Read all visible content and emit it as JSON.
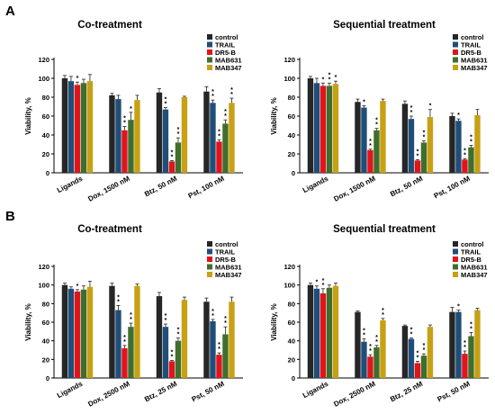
{
  "panel_labels": [
    "A",
    "B"
  ],
  "colors": {
    "control": "#262626",
    "TRAIL": "#1f4e79",
    "DR5-B": "#e0151b",
    "MAB631": "#3f6e2d",
    "MAB347": "#c8a014",
    "error": "#222222",
    "axis": "#000000"
  },
  "chart_data": [
    {
      "type": "bar",
      "panel": "A",
      "title": "Co-treatment",
      "ylabel": "Viability, %",
      "ylim": [
        0,
        120
      ],
      "yticks": [
        0,
        20,
        40,
        60,
        80,
        100,
        120
      ],
      "categories": [
        "Ligands",
        "Dox, 1500 nM",
        "Btz, 50 nM",
        "Pst, 100 nM"
      ],
      "legend": [
        "control",
        "TRAIL",
        "DR5-B",
        "MAB631",
        "MAB347"
      ],
      "legend_position": "top-right",
      "series": [
        {
          "name": "control",
          "values": [
            100,
            82,
            85,
            86
          ],
          "errors": [
            3,
            2,
            4,
            5
          ]
        },
        {
          "name": "TRAIL",
          "values": [
            97,
            78,
            67,
            74
          ],
          "errors": [
            5,
            4,
            2,
            3
          ]
        },
        {
          "name": "DR5-B",
          "values": [
            93,
            45,
            12,
            33
          ],
          "errors": [
            3,
            4,
            1,
            2
          ]
        },
        {
          "name": "MAB631",
          "values": [
            95,
            56,
            32,
            52
          ],
          "errors": [
            4,
            8,
            5,
            4
          ]
        },
        {
          "name": "MAB347",
          "values": [
            97,
            77,
            80,
            74
          ],
          "errors": [
            7,
            5,
            1,
            5
          ]
        }
      ],
      "significance": [
        {
          "category": 0,
          "series": 2,
          "text": "*"
        },
        {
          "category": 1,
          "series": 2,
          "text": "**"
        },
        {
          "category": 1,
          "series": 3,
          "text": "*"
        },
        {
          "category": 2,
          "series": 1,
          "text": "**"
        },
        {
          "category": 2,
          "series": 2,
          "text": "**"
        },
        {
          "category": 2,
          "series": 3,
          "text": "**"
        },
        {
          "category": 3,
          "series": 1,
          "text": "**"
        },
        {
          "category": 3,
          "series": 2,
          "text": "**"
        },
        {
          "category": 3,
          "series": 3,
          "text": "**"
        },
        {
          "category": 3,
          "series": 4,
          "text": "**"
        }
      ]
    },
    {
      "type": "bar",
      "panel": "A",
      "title": "Sequential treatment",
      "ylabel": "Viability, %",
      "ylim": [
        0,
        120
      ],
      "yticks": [
        0,
        20,
        40,
        60,
        80,
        100,
        120
      ],
      "categories": [
        "Ligands",
        "Dox, 1500 nM",
        "Btz, 50 nM",
        "Pst, 100 nM"
      ],
      "legend": [
        "control",
        "TRAIL",
        "DR5-B",
        "MAB631",
        "MAB347"
      ],
      "legend_position": "top-right",
      "series": [
        {
          "name": "control",
          "values": [
            100,
            75,
            73,
            60
          ],
          "errors": [
            2,
            3,
            3,
            3
          ]
        },
        {
          "name": "TRAIL",
          "values": [
            95,
            69,
            57,
            55
          ],
          "errors": [
            5,
            2,
            3,
            2
          ]
        },
        {
          "name": "DR5-B",
          "values": [
            92,
            24,
            13,
            14
          ],
          "errors": [
            3,
            1,
            1,
            1
          ]
        },
        {
          "name": "MAB631",
          "values": [
            92,
            45,
            32,
            27
          ],
          "errors": [
            3,
            2,
            2,
            2
          ]
        },
        {
          "name": "MAB347",
          "values": [
            94,
            76,
            59,
            61
          ],
          "errors": [
            3,
            2,
            8,
            6
          ]
        }
      ],
      "significance": [
        {
          "category": 0,
          "series": 2,
          "text": "*"
        },
        {
          "category": 0,
          "series": 3,
          "text": "**"
        },
        {
          "category": 0,
          "series": 4,
          "text": "*"
        },
        {
          "category": 1,
          "series": 1,
          "text": "*"
        },
        {
          "category": 1,
          "series": 2,
          "text": "**"
        },
        {
          "category": 1,
          "series": 3,
          "text": "**"
        },
        {
          "category": 2,
          "series": 1,
          "text": "**"
        },
        {
          "category": 2,
          "series": 2,
          "text": "**"
        },
        {
          "category": 2,
          "series": 3,
          "text": "**"
        },
        {
          "category": 2,
          "series": 4,
          "text": "*"
        },
        {
          "category": 3,
          "series": 1,
          "text": "*"
        },
        {
          "category": 3,
          "series": 2,
          "text": "**"
        },
        {
          "category": 3,
          "series": 3,
          "text": "**"
        }
      ]
    },
    {
      "type": "bar",
      "panel": "B",
      "title": "Co-treatment",
      "ylabel": "Viability, %",
      "ylim": [
        0,
        120
      ],
      "yticks": [
        0,
        20,
        40,
        60,
        80,
        100,
        120
      ],
      "categories": [
        "Ligands",
        "Dox, 2500 nM",
        "Btz, 25 nM",
        "Pst, 50 nM"
      ],
      "legend": [
        "control",
        "TRAIL",
        "DR5-B",
        "MAB631",
        "MAB347"
      ],
      "legend_position": "top-right",
      "series": [
        {
          "name": "control",
          "values": [
            100,
            99,
            88,
            82
          ],
          "errors": [
            2,
            3,
            4,
            4
          ]
        },
        {
          "name": "TRAIL",
          "values": [
            96,
            73,
            55,
            61
          ],
          "errors": [
            2,
            5,
            3,
            2
          ]
        },
        {
          "name": "DR5-B",
          "values": [
            93,
            32,
            18,
            25
          ],
          "errors": [
            2,
            3,
            1,
            2
          ]
        },
        {
          "name": "MAB631",
          "values": [
            95,
            55,
            40,
            47
          ],
          "errors": [
            4,
            4,
            3,
            8
          ]
        },
        {
          "name": "MAB347",
          "values": [
            98,
            99,
            84,
            82
          ],
          "errors": [
            6,
            2,
            3,
            5
          ]
        }
      ],
      "significance": [
        {
          "category": 0,
          "series": 2,
          "text": "*"
        },
        {
          "category": 1,
          "series": 1,
          "text": "**"
        },
        {
          "category": 1,
          "series": 2,
          "text": "**"
        },
        {
          "category": 1,
          "series": 3,
          "text": "**"
        },
        {
          "category": 2,
          "series": 1,
          "text": "**"
        },
        {
          "category": 2,
          "series": 2,
          "text": "**"
        },
        {
          "category": 2,
          "series": 3,
          "text": "**"
        },
        {
          "category": 3,
          "series": 1,
          "text": "**"
        },
        {
          "category": 3,
          "series": 2,
          "text": "**"
        },
        {
          "category": 3,
          "series": 3,
          "text": "**"
        }
      ]
    },
    {
      "type": "bar",
      "panel": "B",
      "title": "Sequential treatment",
      "ylabel": "Viability, %",
      "ylim": [
        0,
        120
      ],
      "yticks": [
        0,
        20,
        40,
        60,
        80,
        100,
        120
      ],
      "categories": [
        "Ligands",
        "Dox, 2500 nM",
        "Btz, 25 nM",
        "Pst, 50 nM"
      ],
      "legend": [
        "control",
        "TRAIL",
        "DR5-B",
        "MAB631",
        "MAB347"
      ],
      "legend_position": "top-right",
      "series": [
        {
          "name": "control",
          "values": [
            100,
            71,
            56,
            71
          ],
          "errors": [
            2,
            1,
            1,
            5
          ]
        },
        {
          "name": "TRAIL",
          "values": [
            96,
            39,
            42,
            71
          ],
          "errors": [
            3,
            3,
            1,
            2
          ]
        },
        {
          "name": "DR5-B",
          "values": [
            91,
            23,
            16,
            26
          ],
          "errors": [
            5,
            2,
            2,
            3
          ]
        },
        {
          "name": "MAB631",
          "values": [
            97,
            33,
            24,
            45
          ],
          "errors": [
            3,
            2,
            2,
            4
          ]
        },
        {
          "name": "MAB347",
          "values": [
            99,
            62,
            55,
            73
          ],
          "errors": [
            3,
            2,
            2,
            2
          ]
        }
      ],
      "significance": [
        {
          "category": 0,
          "series": 1,
          "text": "*"
        },
        {
          "category": 0,
          "series": 2,
          "text": "**"
        },
        {
          "category": 1,
          "series": 1,
          "text": "**"
        },
        {
          "category": 1,
          "series": 2,
          "text": "**"
        },
        {
          "category": 1,
          "series": 3,
          "text": "**"
        },
        {
          "category": 1,
          "series": 4,
          "text": "**"
        },
        {
          "category": 2,
          "series": 1,
          "text": "**"
        },
        {
          "category": 2,
          "series": 2,
          "text": "**"
        },
        {
          "category": 2,
          "series": 3,
          "text": "**"
        },
        {
          "category": 3,
          "series": 1,
          "text": "*"
        },
        {
          "category": 3,
          "series": 2,
          "text": "**"
        },
        {
          "category": 3,
          "series": 3,
          "text": "**"
        }
      ]
    }
  ]
}
